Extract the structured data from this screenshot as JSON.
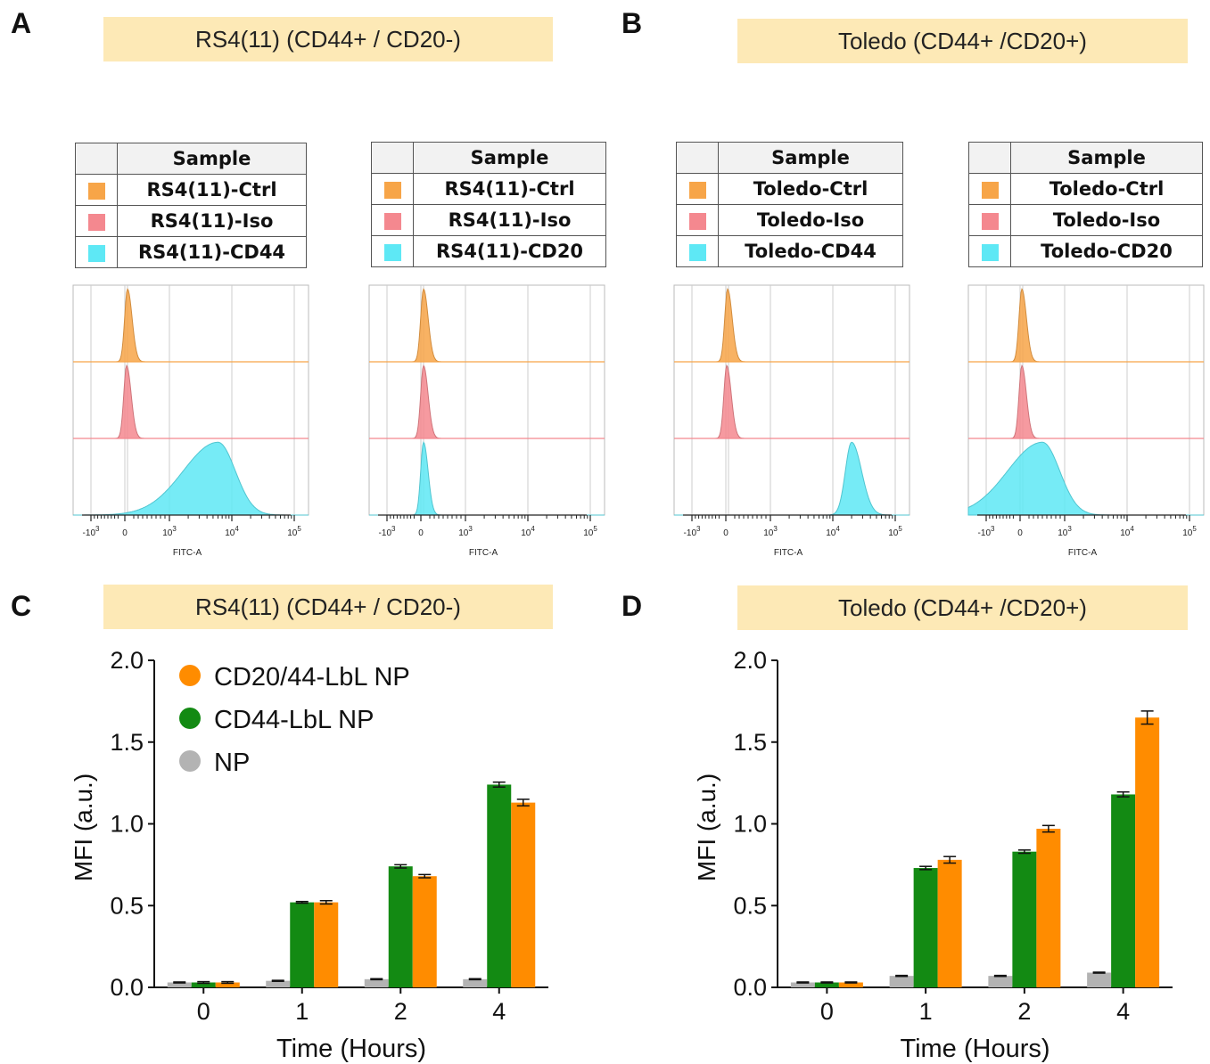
{
  "panels": {
    "A": {
      "letter": "A",
      "banner": "RS4(11) (CD44+ / CD20-)"
    },
    "B": {
      "letter": "B",
      "banner": "Toledo (CD44+ /CD20+)"
    },
    "C": {
      "letter": "C",
      "banner": "RS4(11) (CD44+ / CD20-)"
    },
    "D": {
      "letter": "D",
      "banner": "Toledo (CD44+ /CD20+)"
    }
  },
  "colors": {
    "ctrl": "#f7a548",
    "iso": "#f4888f",
    "cd": "#5ee8f5",
    "np": "#b3b3b3",
    "cd44_lbl": "#138a13",
    "cd20_44_lbl": "#ff8c00",
    "banner": "#fde9b6"
  },
  "sample_tables": [
    {
      "header": "Sample",
      "rows": [
        "RS4(11)-Ctrl",
        "RS4(11)-Iso",
        "RS4(11)-CD44"
      ]
    },
    {
      "header": "Sample",
      "rows": [
        "RS4(11)-Ctrl",
        "RS4(11)-Iso",
        "RS4(11)-CD20"
      ]
    },
    {
      "header": "Sample",
      "rows": [
        "Toledo-Ctrl",
        "Toledo-Iso",
        "Toledo-CD44"
      ]
    },
    {
      "header": "Sample",
      "rows": [
        "Toledo-Ctrl",
        "Toledo-Iso",
        "Toledo-CD20"
      ]
    }
  ],
  "chart_data": [
    {
      "type": "area",
      "panel": "A",
      "xlabel": "FITC-A",
      "x_ticks": [
        "-10^3",
        "0",
        "10^3",
        "10^4",
        "10^5"
      ],
      "tracks": [
        {
          "name": "RS4(11)-Ctrl",
          "peak_at": 60,
          "spread": "narrow"
        },
        {
          "name": "RS4(11)-Iso",
          "peak_at": 40,
          "spread": "narrow"
        },
        {
          "name": "RS4(11)-CD44",
          "peak_at": 6000,
          "spread": "broad"
        }
      ]
    },
    {
      "type": "area",
      "panel": "A",
      "xlabel": "FITC-A",
      "x_ticks": [
        "-10^3",
        "0",
        "10^3",
        "10^4",
        "10^5"
      ],
      "tracks": [
        {
          "name": "RS4(11)-Ctrl",
          "peak_at": 60,
          "spread": "narrow"
        },
        {
          "name": "RS4(11)-Iso",
          "peak_at": 60,
          "spread": "narrow"
        },
        {
          "name": "RS4(11)-CD20",
          "peak_at": 60,
          "spread": "narrow"
        }
      ]
    },
    {
      "type": "area",
      "panel": "B",
      "xlabel": "FITC-A",
      "x_ticks": [
        "-10^3",
        "0",
        "10^3",
        "10^4",
        "10^5"
      ],
      "tracks": [
        {
          "name": "Toledo-Ctrl",
          "peak_at": 40,
          "spread": "narrow"
        },
        {
          "name": "Toledo-Iso",
          "peak_at": 20,
          "spread": "narrow"
        },
        {
          "name": "Toledo-CD44",
          "peak_at": 20000,
          "spread": "medium"
        }
      ]
    },
    {
      "type": "area",
      "panel": "B",
      "xlabel": "FITC-A",
      "x_ticks": [
        "-10^3",
        "0",
        "10^3",
        "10^4",
        "10^5"
      ],
      "tracks": [
        {
          "name": "Toledo-Ctrl",
          "peak_at": 40,
          "spread": "narrow"
        },
        {
          "name": "Toledo-Iso",
          "peak_at": 40,
          "spread": "narrow"
        },
        {
          "name": "Toledo-CD20",
          "peak_at": 500,
          "spread": "broad"
        }
      ]
    },
    {
      "type": "bar",
      "panel": "C",
      "xlabel": "Time (Hours)",
      "ylabel": "MFI (a.u.)",
      "ylim": [
        0,
        2.0
      ],
      "yticks": [
        "0.0",
        "0.5",
        "1.0",
        "1.5",
        "2.0"
      ],
      "categories": [
        "0",
        "1",
        "2",
        "4"
      ],
      "legend_position": "top-left",
      "series": [
        {
          "name": "CD20/44-LbL NP",
          "color": "#ff8c00",
          "values": [
            0.03,
            0.52,
            0.68,
            1.13
          ],
          "errors": [
            0.005,
            0.01,
            0.01,
            0.02
          ]
        },
        {
          "name": "CD44-LbL NP",
          "color": "#138a13",
          "values": [
            0.03,
            0.52,
            0.74,
            1.24
          ],
          "errors": [
            0.005,
            0.005,
            0.01,
            0.015
          ]
        },
        {
          "name": "NP",
          "color": "#b3b3b3",
          "values": [
            0.03,
            0.04,
            0.05,
            0.05
          ],
          "errors": [
            0.003,
            0.003,
            0.003,
            0.003
          ]
        }
      ]
    },
    {
      "type": "bar",
      "panel": "D",
      "xlabel": "Time (Hours)",
      "ylabel": "MFI (a.u.)",
      "ylim": [
        0,
        2.0
      ],
      "yticks": [
        "0.0",
        "0.5",
        "1.0",
        "1.5",
        "2.0"
      ],
      "categories": [
        "0",
        "1",
        "2",
        "4"
      ],
      "series": [
        {
          "name": "CD20/44-LbL NP",
          "color": "#ff8c00",
          "values": [
            0.03,
            0.78,
            0.97,
            1.65
          ],
          "errors": [
            0.003,
            0.02,
            0.02,
            0.04
          ]
        },
        {
          "name": "CD44-LbL NP",
          "color": "#138a13",
          "values": [
            0.03,
            0.73,
            0.83,
            1.18
          ],
          "errors": [
            0.003,
            0.01,
            0.01,
            0.015
          ]
        },
        {
          "name": "NP",
          "color": "#b3b3b3",
          "values": [
            0.03,
            0.07,
            0.07,
            0.09
          ],
          "errors": [
            0.003,
            0.003,
            0.003,
            0.003
          ]
        }
      ]
    }
  ]
}
